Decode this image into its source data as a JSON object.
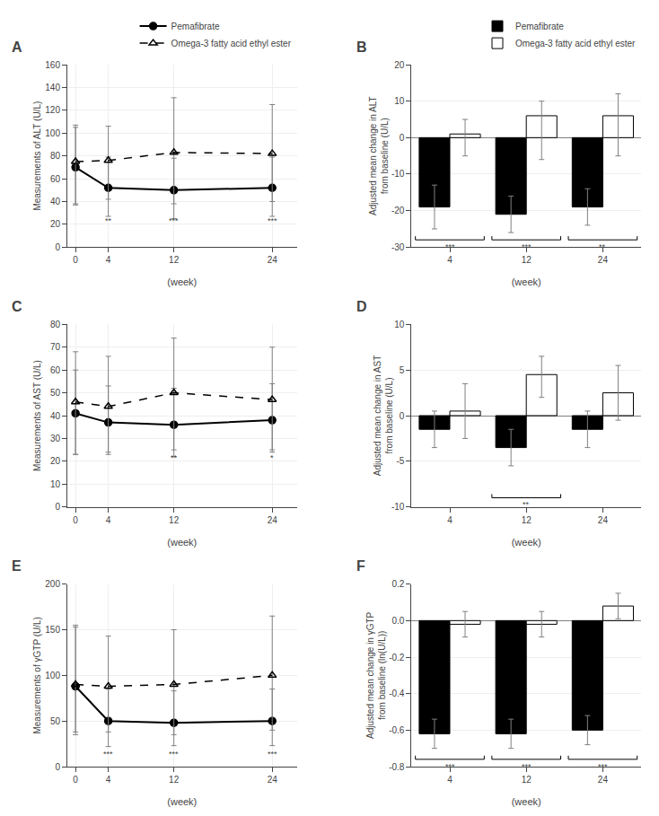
{
  "chart_data": [
    {
      "type": "line",
      "title": "A",
      "xlabel": "(week)",
      "ylabel": "Measurements of ALT (U/L)",
      "x": [
        0,
        4,
        12,
        24
      ],
      "xlim": [
        -1,
        27
      ],
      "ylim": [
        0,
        160
      ],
      "xticks": [
        0,
        4,
        12,
        24
      ],
      "yticks": [
        0,
        20,
        40,
        60,
        80,
        100,
        120,
        140,
        160
      ],
      "grid": true,
      "legend": "upper right",
      "series": [
        {
          "name": "Pemafibrate",
          "color": "#000000",
          "marker": "circle",
          "line_style": "solid",
          "values": [
            70,
            52,
            50,
            52
          ],
          "error_lo": [
            33,
            25,
            25,
            25
          ],
          "error_hi": [
            37,
            27,
            28,
            27
          ]
        },
        {
          "name": "Omega-3 fatty acid ethyl ester",
          "color": "#000000",
          "marker": "triangle-open",
          "line_style": "dashed",
          "values": [
            75,
            76,
            83,
            82
          ],
          "error_lo": [
            37,
            34,
            45,
            42
          ],
          "error_hi": [
            30,
            30,
            48,
            43
          ]
        }
      ],
      "annotations": [
        {
          "x": 4,
          "y": 18,
          "text": "**"
        },
        {
          "x": 12,
          "y": 18,
          "text": "***"
        },
        {
          "x": 24,
          "y": 18,
          "text": "***"
        }
      ]
    },
    {
      "type": "bar",
      "title": "B",
      "xlabel": "(week)",
      "ylabel": "Adjusted mean change in ALT\nfrom baseline (U/L)",
      "categories": [
        "4",
        "12",
        "24"
      ],
      "ylim": [
        -30,
        20
      ],
      "yticks": [
        -30,
        -20,
        -10,
        0,
        10,
        20
      ],
      "grid": "y",
      "legend": "upper right",
      "series": [
        {
          "name": "Pemafibrate",
          "color": "#000000",
          "values": [
            -19,
            -21,
            -19
          ],
          "error_lo": [
            6,
            5,
            5
          ],
          "error_hi": [
            6,
            5,
            5
          ]
        },
        {
          "name": "Omega-3 fatty acid ethyl ester",
          "color": "#ffffff",
          "values": [
            1,
            6,
            6
          ],
          "error_lo": [
            6,
            12,
            11
          ],
          "error_hi": [
            4,
            4,
            6
          ]
        }
      ],
      "annotations": [
        {
          "x": "4",
          "y": -28,
          "text": "***"
        },
        {
          "x": "12",
          "y": -28,
          "text": "***"
        },
        {
          "x": "24",
          "y": -28,
          "text": "**"
        }
      ]
    },
    {
      "type": "line",
      "title": "C",
      "xlabel": "(week)",
      "ylabel": "Measurements of AST (U/L)",
      "x": [
        0,
        4,
        12,
        24
      ],
      "xlim": [
        -1,
        27
      ],
      "ylim": [
        0,
        80
      ],
      "xticks": [
        0,
        4,
        12,
        24
      ],
      "yticks": [
        0,
        10,
        20,
        30,
        40,
        50,
        60,
        70,
        80
      ],
      "grid": true,
      "series": [
        {
          "name": "Pemafibrate",
          "color": "#000000",
          "marker": "circle",
          "line_style": "solid",
          "values": [
            41,
            37,
            36,
            38
          ],
          "error_lo": [
            18,
            14,
            14,
            14
          ],
          "error_hi": [
            19,
            16,
            16,
            16
          ]
        },
        {
          "name": "Omega-3 fatty acid ethyl ester",
          "color": "#000000",
          "marker": "triangle-open",
          "line_style": "dashed",
          "values": [
            46,
            44,
            50,
            47
          ],
          "error_lo": [
            23,
            20,
            25,
            22
          ],
          "error_hi": [
            22,
            22,
            24,
            23
          ]
        }
      ],
      "annotations": [
        {
          "x": 12,
          "y": 19,
          "text": "**"
        },
        {
          "x": 24,
          "y": 19,
          "text": "*"
        }
      ]
    },
    {
      "type": "bar",
      "title": "D",
      "xlabel": "(week)",
      "ylabel": "Adjusted mean change in AST\nfrom baseline (U/L)",
      "categories": [
        "4",
        "12",
        "24"
      ],
      "ylim": [
        -10,
        10
      ],
      "yticks": [
        -10,
        -5,
        0,
        5,
        10
      ],
      "grid": "y",
      "series": [
        {
          "name": "Pemafibrate",
          "color": "#000000",
          "values": [
            -1.5,
            -3.5,
            -1.5
          ],
          "error_lo": [
            2,
            2,
            2
          ],
          "error_hi": [
            2,
            2,
            2
          ]
        },
        {
          "name": "Omega-3 fatty acid ethyl ester",
          "color": "#ffffff",
          "values": [
            0.5,
            4.5,
            2.5
          ],
          "error_lo": [
            3,
            2.5,
            3
          ],
          "error_hi": [
            3,
            2,
            3
          ]
        }
      ],
      "annotations": [
        {
          "x": "12",
          "y": -9,
          "text": "**"
        }
      ]
    },
    {
      "type": "line",
      "title": "E",
      "xlabel": "(week)",
      "ylabel": "Measurements of γGTP (U/L)",
      "x": [
        0,
        4,
        12,
        24
      ],
      "xlim": [
        -1,
        27
      ],
      "ylim": [
        0,
        200
      ],
      "xticks": [
        0,
        4,
        12,
        24
      ],
      "yticks": [
        0,
        50,
        100,
        150,
        200
      ],
      "grid": true,
      "series": [
        {
          "name": "Pemafibrate",
          "color": "#000000",
          "marker": "circle",
          "line_style": "solid",
          "values": [
            88,
            50,
            48,
            50
          ],
          "error_lo": [
            50,
            28,
            25,
            27
          ],
          "error_hi": [
            65,
            35,
            35,
            35
          ]
        },
        {
          "name": "Omega-3 fatty acid ethyl ester",
          "color": "#000000",
          "marker": "triangle-open",
          "line_style": "dashed",
          "values": [
            90,
            88,
            90,
            100
          ],
          "error_lo": [
            55,
            50,
            55,
            60
          ],
          "error_hi": [
            65,
            55,
            60,
            65
          ]
        }
      ],
      "annotations": [
        {
          "x": 4,
          "y": 8,
          "text": "***"
        },
        {
          "x": 12,
          "y": 8,
          "text": "***"
        },
        {
          "x": 24,
          "y": 8,
          "text": "***"
        }
      ]
    },
    {
      "type": "bar",
      "title": "F",
      "xlabel": "(week)",
      "ylabel": "Adjusted mean change in γGTP\nfrom baseline (ln(U/L))",
      "categories": [
        "4",
        "12",
        "24"
      ],
      "ylim": [
        -0.8,
        0.2
      ],
      "yticks": [
        -0.8,
        -0.6,
        -0.4,
        -0.2,
        {
          "value": 0,
          "label": "0.0"
        },
        0.2
      ],
      "grid": "y",
      "series": [
        {
          "name": "Pemafibrate",
          "color": "#000000",
          "values": [
            -0.62,
            -0.62,
            -0.6
          ],
          "error_lo": [
            0.08,
            0.08,
            0.08
          ],
          "error_hi": [
            0.08,
            0.08,
            0.08
          ]
        },
        {
          "name": "Omega-3 fatty acid ethyl ester",
          "color": "#ffffff",
          "values": [
            -0.02,
            -0.02,
            0.08
          ],
          "error_lo": [
            0.07,
            0.07,
            0.07
          ],
          "error_hi": [
            0.07,
            0.07,
            0.07
          ]
        }
      ],
      "annotations": [
        {
          "x": "4",
          "y": -0.76,
          "text": "***"
        },
        {
          "x": "12",
          "y": -0.76,
          "text": "***"
        },
        {
          "x": "24",
          "y": -0.76,
          "text": "***"
        }
      ]
    }
  ]
}
